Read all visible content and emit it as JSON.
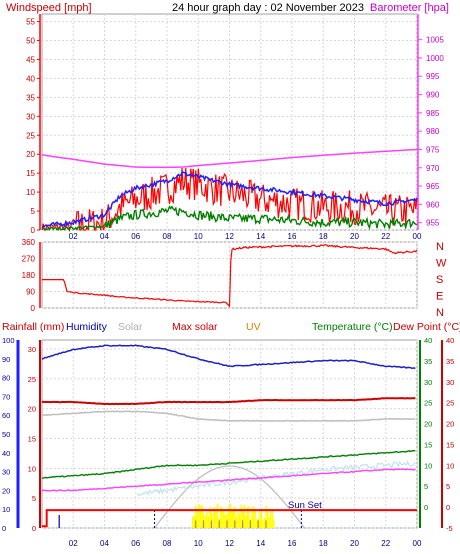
{
  "header": {
    "title": "24 hour graph day : 02 November 2023",
    "wind_label": "Windspeed [mph]",
    "baro_label": "Barometer [hpa]"
  },
  "legend": {
    "rainfall": "Rainfall (mm)",
    "humidity": "Humidity",
    "solar": "Solar",
    "max_solar": "Max solar",
    "uv": "UV",
    "temperature": "Temperature (°C)",
    "dew_point": "Dew Point (°C)",
    "sun_set": "Sun Set"
  },
  "colors": {
    "wind": "#ff0000",
    "gust": "#2020ff",
    "wind_avg": "#008000",
    "baro": "#ff40ff",
    "direction": "#ff0000",
    "humidity": "#2020c0",
    "temperature": "#008000",
    "dew_point": "#ff40ff",
    "rain": "#ff0000",
    "solar": "#ffff00",
    "max_solar": "#c0c0c0",
    "uv": "#cc8800",
    "apparent": "#bfe3ef"
  },
  "chart_data": [
    {
      "type": "line",
      "panel": "wind-baro",
      "x_ticks": [
        "02",
        "04",
        "06",
        "08",
        "10",
        "12",
        "14",
        "16",
        "18",
        "20",
        "22",
        "00"
      ],
      "y_left_ticks": [
        0,
        5,
        10,
        15,
        20,
        25,
        30,
        35,
        40,
        45,
        50,
        55
      ],
      "y_right_ticks": [
        955,
        960,
        965,
        970,
        975,
        980,
        985,
        990,
        995,
        1000,
        1005
      ],
      "ylim_left": [
        0,
        57
      ],
      "ylim_right": [
        953,
        1012
      ],
      "hours": [
        0,
        2,
        4,
        5,
        6,
        8,
        9,
        10,
        12,
        14,
        16,
        18,
        20,
        22,
        24
      ],
      "series": [
        {
          "key": "gust",
          "axis": "left",
          "values": [
            1,
            2,
            4,
            9,
            11,
            13,
            15,
            14,
            12,
            11,
            10,
            9,
            8,
            7,
            8
          ]
        },
        {
          "key": "speed",
          "axis": "left",
          "values": [
            0.5,
            1,
            2,
            6,
            8,
            11,
            13,
            12,
            10,
            8,
            7,
            6,
            6,
            5,
            5
          ]
        },
        {
          "key": "avg",
          "axis": "left",
          "values": [
            0.3,
            0.5,
            1,
            3,
            4,
            5,
            5,
            4,
            3,
            3,
            2.5,
            2,
            2,
            1.5,
            2
          ]
        },
        {
          "key": "barometer",
          "axis": "right",
          "values": [
            973.5,
            972.3,
            971,
            970.6,
            970.2,
            970.1,
            970.2,
            970.6,
            971.3,
            972,
            972.8,
            973.4,
            974,
            974.5,
            975
          ]
        }
      ]
    },
    {
      "type": "line",
      "panel": "direction",
      "y_ticks": [
        0,
        90,
        180,
        270,
        360
      ],
      "ylim": [
        0,
        360
      ],
      "right_labels": [
        "N",
        "W",
        "S",
        "E",
        "N"
      ],
      "hours": [
        0,
        0.5,
        1.4,
        1.6,
        2.5,
        4,
        5,
        7,
        9,
        10,
        11.8,
        12,
        12.1,
        13,
        16,
        18,
        20,
        22,
        22.5,
        24
      ],
      "values": [
        155,
        155,
        155,
        90,
        80,
        70,
        60,
        50,
        38,
        35,
        30,
        10,
        320,
        330,
        338,
        340,
        330,
        322,
        300,
        310
      ]
    },
    {
      "type": "line",
      "panel": "temperature-humidity-solar",
      "x_ticks": [
        "02",
        "04",
        "06",
        "08",
        "10",
        "12",
        "14",
        "16",
        "18",
        "20",
        "22",
        "00"
      ],
      "humidity_ticks": [
        0,
        10,
        20,
        30,
        40,
        50,
        60,
        70,
        80,
        90,
        100
      ],
      "rain_ticks": [
        0,
        5,
        10,
        15,
        20,
        25,
        30
      ],
      "temperature_ticks": [
        0,
        5,
        10,
        15,
        20,
        25,
        30,
        35,
        40
      ],
      "right_temperature_ticks": [
        -5,
        0,
        5,
        10,
        15,
        20,
        25,
        30,
        35,
        40
      ],
      "ylim_humidity": [
        0,
        100
      ],
      "ylim_temperature": [
        -5,
        40
      ],
      "hours": [
        0,
        2,
        4,
        6,
        8,
        10,
        12,
        14,
        16,
        18,
        20,
        22,
        24
      ],
      "series": [
        {
          "key": "humidity",
          "values": [
            90,
            95,
            97,
            97,
            95,
            90,
            86,
            87,
            88,
            89,
            89,
            86,
            85
          ]
        },
        {
          "key": "max_solar_line",
          "values": [
            60,
            61,
            62,
            62,
            61,
            58,
            57,
            57,
            57,
            57,
            57,
            58,
            58
          ]
        },
        {
          "key": "max_temp_line",
          "values": [
            67,
            67,
            66,
            66,
            67,
            67,
            67,
            68,
            68,
            68,
            68,
            69,
            69
          ]
        },
        {
          "key": "temperature",
          "values": [
            7,
            7.5,
            8,
            9,
            10,
            10,
            10.5,
            11,
            11.5,
            12,
            12.5,
            13,
            13.5
          ]
        },
        {
          "key": "dew_point",
          "values": [
            4,
            4,
            4.5,
            5,
            5.5,
            6,
            6.5,
            7,
            7.5,
            8,
            8.5,
            9,
            9
          ]
        },
        {
          "key": "apparent",
          "values": [
            null,
            null,
            null,
            3,
            4,
            5,
            6,
            7,
            8,
            9,
            9.5,
            10,
            10.5
          ]
        }
      ],
      "max_solar_curve": {
        "start_hour": 7.2,
        "end_hour": 16.8,
        "peak": 33
      },
      "solar_bars": {
        "start_hour": 9.6,
        "end_hour": 14.8,
        "level": 12
      },
      "uv_bars": {
        "start_hour": 9.8,
        "end_hour": 14.3,
        "level": 4
      },
      "rain_total": 3,
      "sun_rise_hour": 7.2,
      "sun_set_hour": 16.6
    }
  ]
}
